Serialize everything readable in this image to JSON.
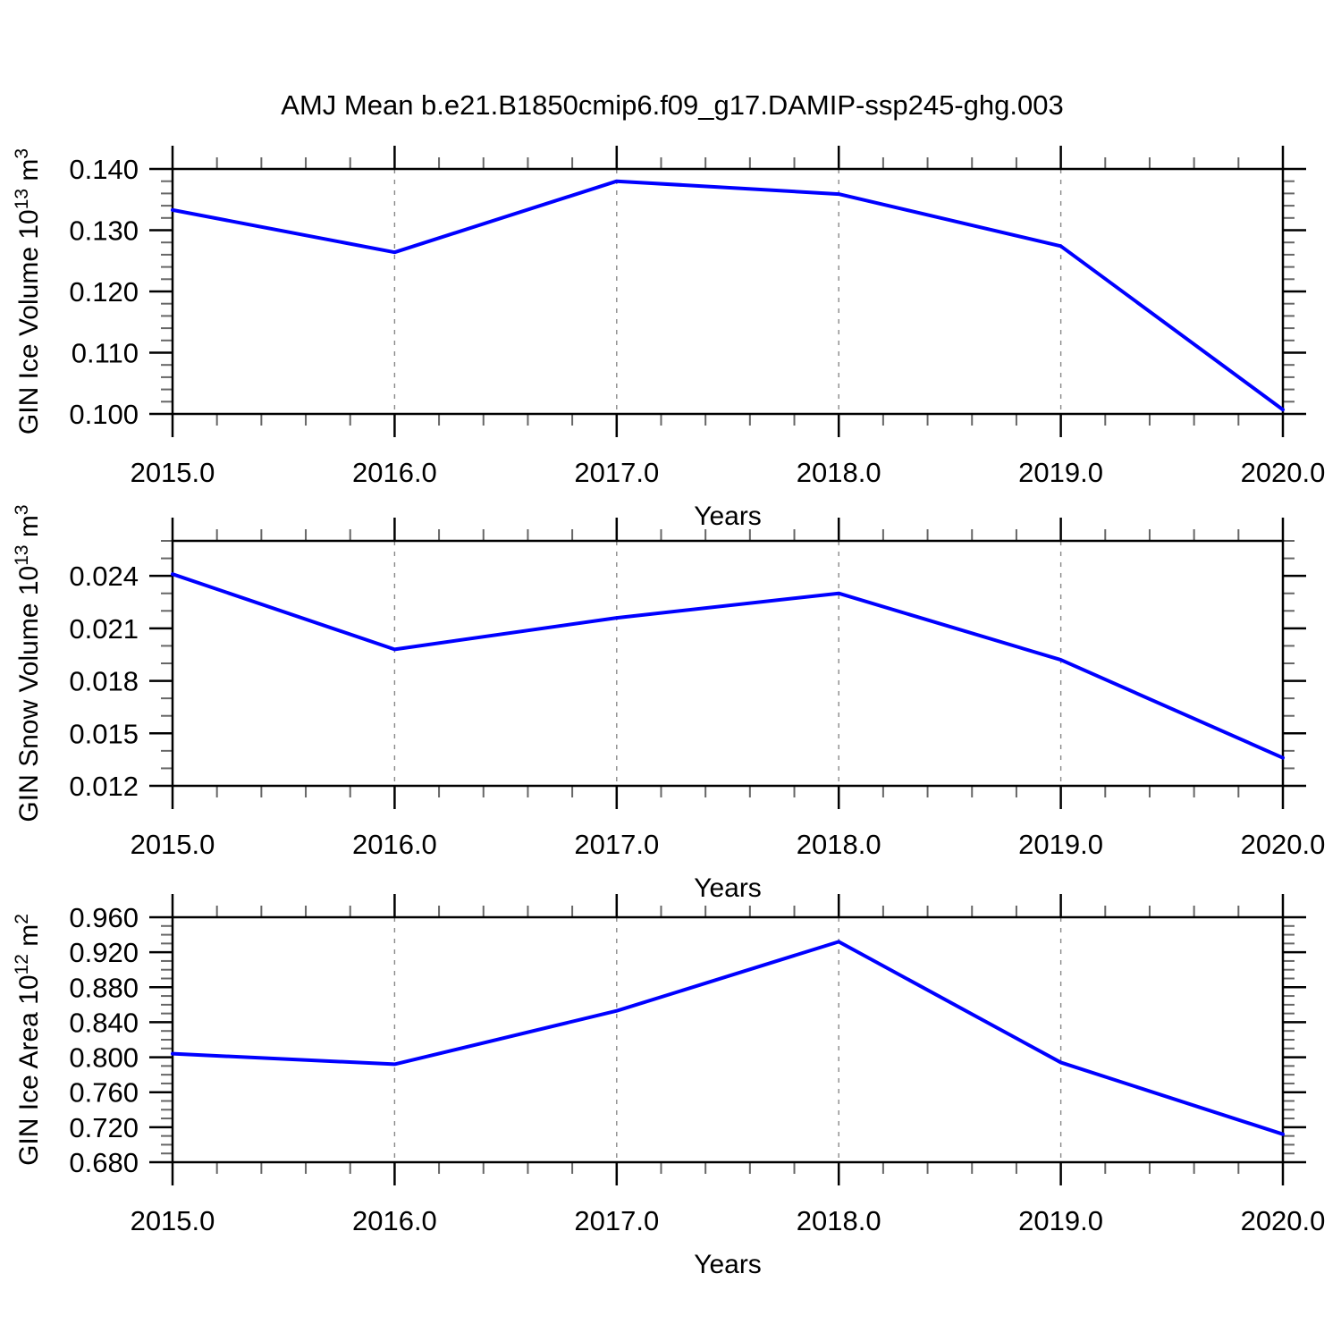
{
  "figure": {
    "title": "AMJ Mean b.e21.B1850cmip6.f09_g17.DAMIP-ssp245-ghg.003",
    "line_color": "#0000ff",
    "grid_color": "#888888",
    "axis_color": "#000000",
    "minor_tick_color": "#666666",
    "background": "#ffffff"
  },
  "chart_data": [
    {
      "id": "gin-ice-volume",
      "type": "line",
      "xlabel": "Years",
      "ylabel_parts": [
        {
          "t": "GIN Ice Volume 10"
        },
        {
          "t": "13",
          "sup": true
        },
        {
          "t": " m"
        },
        {
          "t": "3",
          "sup": true
        }
      ],
      "x": [
        2015.0,
        2016.0,
        2017.0,
        2018.0,
        2019.0,
        2020.0
      ],
      "values": [
        0.1333,
        0.1264,
        0.138,
        0.1359,
        0.1274,
        0.1007
      ],
      "xlim": [
        2015.0,
        2020.0
      ],
      "ylim": [
        0.1,
        0.14
      ],
      "xticks": [
        2015,
        2016,
        2017,
        2018,
        2019,
        2020
      ],
      "xtick_labels": [
        "2015.0",
        "2016.0",
        "2017.0",
        "2018.0",
        "2019.0",
        "2020.0"
      ],
      "x_minor_step": 0.2,
      "yticks": [
        0.1,
        0.11,
        0.12,
        0.13,
        0.14
      ],
      "ytick_labels": [
        "0.100",
        "0.110",
        "0.120",
        "0.130",
        "0.140"
      ],
      "y_minor_step": 0.002,
      "grid_x": [
        2016,
        2017,
        2018,
        2019
      ]
    },
    {
      "id": "gin-snow-volume",
      "type": "line",
      "xlabel": "Years",
      "ylabel_parts": [
        {
          "t": "GIN Snow Volume 10"
        },
        {
          "t": "13",
          "sup": true
        },
        {
          "t": " m"
        },
        {
          "t": "3",
          "sup": true
        }
      ],
      "x": [
        2015.0,
        2016.0,
        2017.0,
        2018.0,
        2019.0,
        2020.0
      ],
      "values": [
        0.0241,
        0.0198,
        0.0216,
        0.023,
        0.0192,
        0.0136
      ],
      "xlim": [
        2015.0,
        2020.0
      ],
      "ylim": [
        0.012,
        0.026
      ],
      "xticks": [
        2015,
        2016,
        2017,
        2018,
        2019,
        2020
      ],
      "xtick_labels": [
        "2015.0",
        "2016.0",
        "2017.0",
        "2018.0",
        "2019.0",
        "2020.0"
      ],
      "x_minor_step": 0.2,
      "yticks": [
        0.012,
        0.015,
        0.018,
        0.021,
        0.024
      ],
      "ytick_labels": [
        "0.012",
        "0.015",
        "0.018",
        "0.021",
        "0.024"
      ],
      "y_minor_step": 0.001,
      "grid_x": [
        2016,
        2017,
        2018,
        2019
      ]
    },
    {
      "id": "gin-ice-area",
      "type": "line",
      "xlabel": "Years",
      "ylabel_parts": [
        {
          "t": "GIN Ice Area 10"
        },
        {
          "t": "12",
          "sup": true
        },
        {
          "t": " m"
        },
        {
          "t": "2",
          "sup": true
        }
      ],
      "x": [
        2015.0,
        2016.0,
        2017.0,
        2018.0,
        2019.0,
        2020.0
      ],
      "values": [
        0.804,
        0.792,
        0.853,
        0.932,
        0.794,
        0.712
      ],
      "xlim": [
        2015.0,
        2020.0
      ],
      "ylim": [
        0.68,
        0.96
      ],
      "xticks": [
        2015,
        2016,
        2017,
        2018,
        2019,
        2020
      ],
      "xtick_labels": [
        "2015.0",
        "2016.0",
        "2017.0",
        "2018.0",
        "2019.0",
        "2020.0"
      ],
      "x_minor_step": 0.2,
      "yticks": [
        0.68,
        0.72,
        0.76,
        0.8,
        0.84,
        0.88,
        0.92,
        0.96
      ],
      "ytick_labels": [
        "0.680",
        "0.720",
        "0.760",
        "0.800",
        "0.840",
        "0.880",
        "0.920",
        "0.960"
      ],
      "y_minor_step": 0.01,
      "grid_x": [
        2016,
        2017,
        2018,
        2019
      ]
    }
  ]
}
